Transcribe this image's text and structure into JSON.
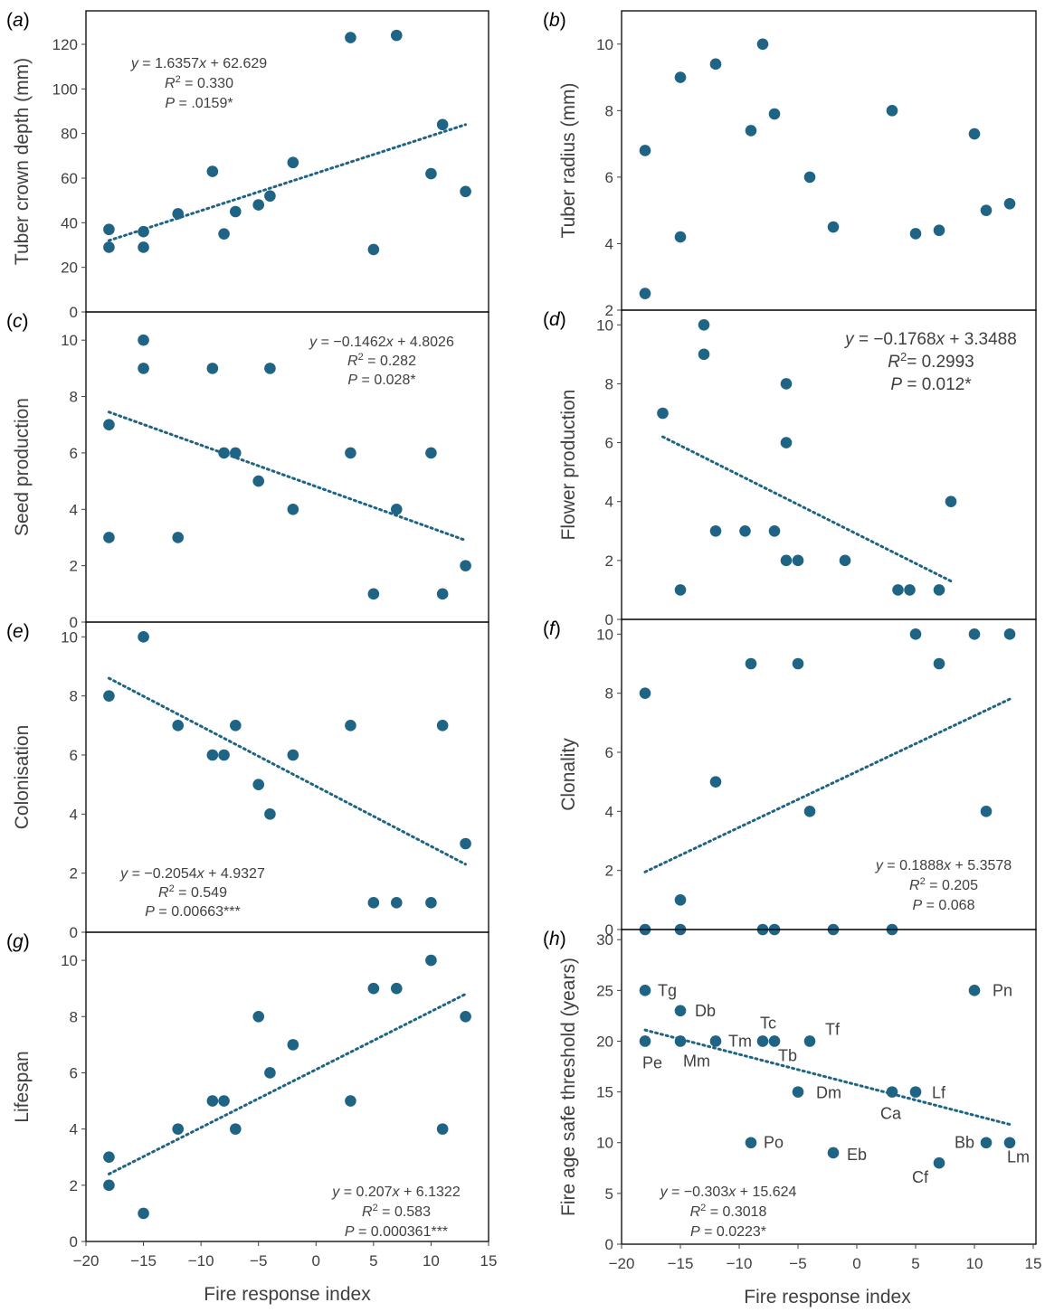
{
  "x_axis": {
    "label": "Fire response index",
    "ticks": [
      -20,
      -15,
      -10,
      -5,
      0,
      5,
      10,
      15
    ],
    "tick_labels": [
      "−20",
      "−15",
      "−10",
      "−5",
      "0",
      "5",
      "10",
      "15"
    ],
    "xlim": [
      -20,
      15
    ]
  },
  "colors": {
    "point": "#1f6484",
    "trend": "#1f6484",
    "axis": "#404040",
    "frame": "#000000"
  },
  "chart_data": [
    {
      "id": "a",
      "type": "scatter",
      "panel_label": "a",
      "ylabel": "Tuber crown depth (mm)",
      "ylim": [
        0,
        135
      ],
      "yticks": [
        0,
        20,
        40,
        60,
        80,
        100,
        120
      ],
      "x": [
        -18,
        -18,
        -15,
        -15,
        -12,
        -9,
        -8,
        -7,
        -5,
        -4,
        -2,
        3,
        5,
        7,
        10,
        11,
        13
      ],
      "y": [
        37,
        29,
        36,
        29,
        44,
        63,
        35,
        45,
        48,
        52,
        67,
        123,
        28,
        124,
        62,
        84,
        54
      ],
      "trend": {
        "x": [
          -18,
          13
        ],
        "slope": 1.6357,
        "intercept": 62.629
      },
      "annotation_lines": [
        [
          "y",
          " = 1.6357",
          "x",
          " + 62.629"
        ],
        [
          "R",
          "2",
          " = 0.330"
        ],
        [
          "P",
          " = .0159*"
        ]
      ],
      "annotation_position": "top-left"
    },
    {
      "id": "b",
      "type": "scatter",
      "panel_label": "b",
      "ylabel": "Tuber radius (mm)",
      "ylim": [
        2,
        11
      ],
      "yticks": [
        2,
        4,
        6,
        8,
        10
      ],
      "x": [
        -18,
        -18,
        -15,
        -15,
        -12,
        -9,
        -8,
        -7,
        -4,
        -2,
        3,
        5,
        7,
        10,
        11,
        13
      ],
      "y": [
        6.8,
        2.5,
        9.0,
        4.2,
        9.4,
        7.4,
        10.0,
        7.9,
        6.0,
        4.5,
        8.0,
        4.3,
        4.4,
        7.3,
        5.0,
        5.2
      ],
      "trend": null,
      "annotation_lines": []
    },
    {
      "id": "c",
      "type": "scatter",
      "panel_label": "c",
      "ylabel": "Seed production",
      "ylim": [
        0,
        11
      ],
      "yticks": [
        0,
        2,
        4,
        6,
        8,
        10
      ],
      "x": [
        -18,
        -18,
        -15,
        -15,
        -12,
        -9,
        -8,
        -7,
        -5,
        -4,
        -2,
        3,
        5,
        7,
        10,
        11,
        13
      ],
      "y": [
        7,
        3,
        10,
        9,
        3,
        9,
        6,
        6,
        5,
        9,
        4,
        6,
        1,
        4,
        6,
        1,
        2
      ],
      "trend": {
        "x": [
          -18,
          13
        ],
        "slope": -0.1462,
        "intercept": 4.8026
      },
      "annotation_lines": [
        [
          "y",
          " = −0.1462",
          "x",
          " + 4.8026"
        ],
        [
          "R",
          "2",
          " = 0.282"
        ],
        [
          "P",
          " = 0.028*"
        ]
      ],
      "annotation_position": "top-right"
    },
    {
      "id": "d",
      "type": "scatter",
      "panel_label": "d",
      "ylabel": "Flower production",
      "ylim": [
        0,
        10.5
      ],
      "yticks": [
        0,
        2,
        4,
        6,
        8,
        10
      ],
      "x": [
        -16.5,
        -15,
        -13,
        -13,
        -12,
        -9.5,
        -7,
        -6,
        -6,
        -6,
        -5,
        -1,
        3.5,
        4.5,
        7,
        8
      ],
      "y": [
        7,
        1,
        10,
        9,
        3,
        3,
        3,
        8,
        6,
        2,
        2,
        2,
        1,
        1,
        1,
        4
      ],
      "trend": {
        "x": [
          -16.5,
          8
        ],
        "slope": -0.1768,
        "intercept": 3.3488
      },
      "annotation_lines": [
        [
          "y",
          " = −0.1768",
          "x",
          " + 3.3488"
        ],
        [
          "R",
          "2",
          "= 0.2993"
        ],
        [
          "P",
          " = 0.012*"
        ]
      ],
      "annotation_position": "top-right"
    },
    {
      "id": "e",
      "type": "scatter",
      "panel_label": "e",
      "ylabel": "Colonisation",
      "ylim": [
        0,
        10.5
      ],
      "yticks": [
        0,
        2,
        4,
        6,
        8,
        10
      ],
      "x": [
        -18,
        -15,
        -12,
        -9,
        -8,
        -7,
        -5,
        -4,
        -2,
        3,
        5,
        7,
        10,
        11,
        13
      ],
      "y": [
        8,
        10,
        7,
        6,
        6,
        7,
        5,
        4,
        6,
        7,
        1,
        1,
        1,
        7,
        3
      ],
      "trend": {
        "x": [
          -18,
          13
        ],
        "slope": -0.2054,
        "intercept": 4.9327
      },
      "annotation_lines": [
        [
          "y",
          " = −0.2054",
          "x",
          " + 4.9327"
        ],
        [
          "R",
          "2",
          " = 0.549"
        ],
        [
          "P",
          " = 0.00663***"
        ]
      ],
      "annotation_position": "bottom-left"
    },
    {
      "id": "f",
      "type": "scatter",
      "panel_label": "f",
      "ylabel": "Clonality",
      "ylim": [
        0,
        10.5
      ],
      "yticks": [
        0,
        2,
        4,
        6,
        8,
        10
      ],
      "x": [
        -18,
        -18,
        -15,
        -15,
        -12,
        -9,
        -8,
        -7,
        -5,
        -4,
        -2,
        3,
        5,
        7,
        10,
        11,
        13
      ],
      "y": [
        8,
        0,
        1,
        0,
        5,
        9,
        0,
        0,
        9,
        4,
        0,
        0,
        10,
        9,
        10,
        4,
        10
      ],
      "trend": {
        "x": [
          -18,
          13
        ],
        "slope": 0.1888,
        "intercept": 5.3578
      },
      "annotation_lines": [
        [
          "y",
          " = 0.1888",
          "x",
          " + 5.3578"
        ],
        [
          "R",
          "2",
          " = 0.205"
        ],
        [
          "P",
          " = 0.068"
        ]
      ],
      "annotation_position": "bottom-right"
    },
    {
      "id": "g",
      "type": "scatter",
      "panel_label": "g",
      "ylabel": "Lifespan",
      "ylim": [
        0,
        11
      ],
      "yticks": [
        0,
        2,
        4,
        6,
        8,
        10
      ],
      "x": [
        -18,
        -18,
        -15,
        -12,
        -9,
        -8,
        -7,
        -5,
        -4,
        -2,
        3,
        5,
        7,
        10,
        11,
        13
      ],
      "y": [
        3,
        2,
        1,
        4,
        5,
        5,
        4,
        8,
        6,
        7,
        5,
        9,
        9,
        10,
        4,
        8
      ],
      "trend": {
        "x": [
          -18,
          13
        ],
        "slope": 0.207,
        "intercept": 6.1322
      },
      "annotation_lines": [
        [
          "y",
          " = 0.207",
          "x",
          " + 6.1322"
        ],
        [
          "R",
          "2",
          " = 0.583"
        ],
        [
          "P",
          " = 0.000361***"
        ]
      ],
      "annotation_position": "bottom-right"
    },
    {
      "id": "h",
      "type": "scatter",
      "panel_label": "h",
      "ylabel": "Fire age safe threshold (years)",
      "ylim": [
        0,
        31
      ],
      "yticks": [
        0,
        5,
        10,
        15,
        20,
        25,
        30
      ],
      "x": [
        -18,
        -18,
        -15,
        -15,
        -12,
        -9,
        -8,
        -7,
        -5,
        -4,
        -2,
        3,
        5,
        7,
        10,
        11,
        13
      ],
      "y": [
        25,
        20,
        23,
        20,
        20,
        10,
        20,
        20,
        15,
        20,
        9,
        15,
        15,
        8,
        25,
        10,
        10
      ],
      "point_labels": [
        "Tg",
        "Pe",
        "Db",
        "Mm",
        "Tm",
        "Po",
        "Tc",
        "Tb",
        "Dm",
        "Tf",
        "Eb",
        "Ca",
        "Lf",
        "Cf",
        "Pn",
        "Bb",
        "Lm"
      ],
      "trend": {
        "x": [
          -18,
          13
        ],
        "slope": -0.303,
        "intercept": 15.624
      },
      "annotation_lines": [
        [
          "y",
          " = −0.303",
          "x",
          " + 15.624"
        ],
        [
          "R",
          "2",
          " = 0.3018"
        ],
        [
          "P",
          " = 0.0223*"
        ]
      ],
      "annotation_position": "bottom-left"
    }
  ]
}
